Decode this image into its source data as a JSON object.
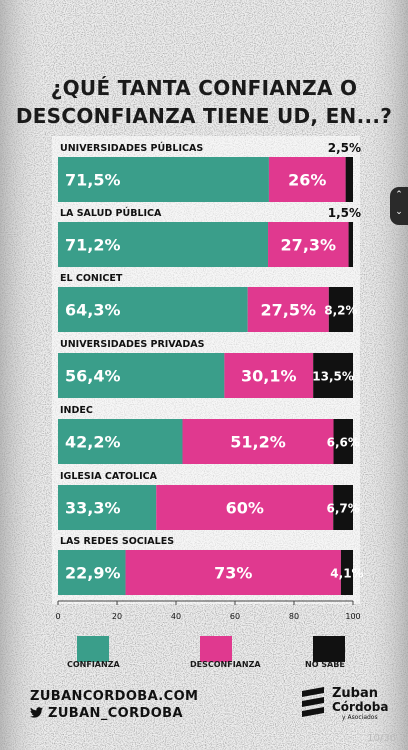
{
  "title_line1": "¿QUÉ TANTA CONFIANZA O",
  "title_line2": "DESCONFIANZA TIENE UD, EN...?",
  "colors": {
    "confianza": "#3a9e8a",
    "desconfianza": "#e0398f",
    "no_sabe": "#111111"
  },
  "chart_data": {
    "type": "bar",
    "orientation": "horizontal",
    "stacked": true,
    "title": "¿QUÉ TANTA CONFIANZA O DESCONFIANZA TIENE UD, EN...?",
    "categories": [
      "UNIVERSIDADES PÚBLICAS",
      "LA SALUD PÚBLICA",
      "EL CONICET",
      "UNIVERSIDADES PRIVADAS",
      "INDEC",
      "IGLESIA CATOLICA",
      "LAS REDES SOCIALES"
    ],
    "series": [
      {
        "name": "CONFIANZA",
        "values": [
          71.5,
          71.2,
          64.3,
          56.4,
          42.2,
          33.3,
          22.9
        ],
        "labels": [
          "71,5%",
          "71,2%",
          "64,3%",
          "56,4%",
          "42,2%",
          "33,3%",
          "22,9%"
        ]
      },
      {
        "name": "DESCONFIANZA",
        "values": [
          26,
          27.3,
          27.5,
          30.1,
          51.2,
          60,
          73
        ],
        "labels": [
          "26%",
          "27,3%",
          "27,5%",
          "30,1%",
          "51,2%",
          "60%",
          "73%"
        ]
      },
      {
        "name": "NO SABE",
        "values": [
          2.5,
          1.5,
          8.2,
          13.5,
          6.6,
          6.7,
          4.1
        ],
        "labels": [
          "2,5%",
          "1,5%",
          "8,2%",
          "13,5%",
          "6,6%",
          "6,7%",
          "4,1%"
        ]
      }
    ],
    "xlim": [
      0,
      100
    ],
    "xticks": [
      "0",
      "20",
      "40",
      "60",
      "80",
      "100"
    ],
    "legend": "bottom",
    "grid": false
  },
  "footer": {
    "website": "ZUBANCORDOBA.COM",
    "twitter": "ZUBAN_CORDOBA"
  },
  "logo": {
    "name_line1": "Zuban",
    "name_line2": "Córdoba",
    "name_line3": "y Asociados"
  },
  "page_indicator": "10/36",
  "icons": {
    "scroll_up": "chevron-up-icon",
    "scroll_down": "chevron-down-icon",
    "twitter": "twitter-icon"
  }
}
